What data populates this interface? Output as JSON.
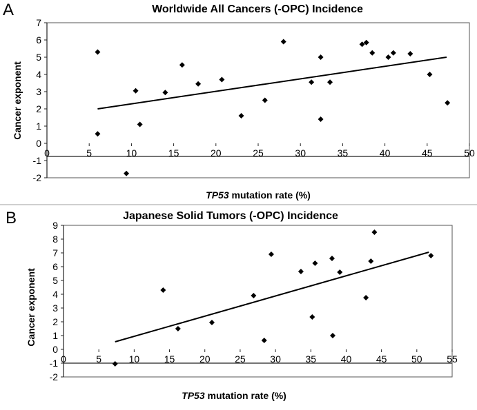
{
  "chart_data": [
    {
      "type": "scatter",
      "panel_label": "A",
      "title": "Worldwide All Cancers (-OPC) Incidence",
      "xlabel_italic": "TP53",
      "xlabel_rest": " mutation  rate (%)",
      "ylabel": "Cancer exponent",
      "xlim": [
        0,
        50
      ],
      "ylim": [
        -2,
        7
      ],
      "xticks": [
        0,
        5,
        10,
        15,
        20,
        25,
        30,
        35,
        40,
        45,
        50
      ],
      "yticks": [
        -2,
        -1,
        0,
        1,
        2,
        3,
        4,
        5,
        6,
        7
      ],
      "grid": false,
      "points": [
        {
          "x": 6.0,
          "y": 5.3
        },
        {
          "x": 6.0,
          "y": 0.55
        },
        {
          "x": 9.4,
          "y": -1.75
        },
        {
          "x": 10.5,
          "y": 3.05
        },
        {
          "x": 11.0,
          "y": 1.1
        },
        {
          "x": 14.0,
          "y": 2.95
        },
        {
          "x": 16.0,
          "y": 4.55
        },
        {
          "x": 17.9,
          "y": 3.45
        },
        {
          "x": 20.7,
          "y": 3.7
        },
        {
          "x": 23.0,
          "y": 1.6
        },
        {
          "x": 25.8,
          "y": 2.5
        },
        {
          "x": 28.0,
          "y": 5.9
        },
        {
          "x": 31.3,
          "y": 3.55
        },
        {
          "x": 32.4,
          "y": 5.0
        },
        {
          "x": 32.4,
          "y": 1.4
        },
        {
          "x": 33.5,
          "y": 3.55
        },
        {
          "x": 37.3,
          "y": 5.75
        },
        {
          "x": 37.8,
          "y": 5.85
        },
        {
          "x": 38.5,
          "y": 5.25
        },
        {
          "x": 40.4,
          "y": 5.0
        },
        {
          "x": 41.0,
          "y": 5.25
        },
        {
          "x": 43.0,
          "y": 5.2
        },
        {
          "x": 45.3,
          "y": 4.0
        },
        {
          "x": 47.4,
          "y": 2.35
        }
      ],
      "trendline": {
        "x": [
          6.0,
          47.3
        ],
        "y": [
          2.0,
          5.0
        ]
      }
    },
    {
      "type": "scatter",
      "panel_label": "B",
      "title": "Japanese Solid Tumors (-OPC) Incidence",
      "xlabel_italic": "TP53",
      "xlabel_rest": " mutation  rate (%)",
      "ylabel": "Cancer exponent",
      "xlim": [
        0,
        55
      ],
      "ylim": [
        -2,
        9
      ],
      "xticks": [
        0,
        5,
        10,
        15,
        20,
        25,
        30,
        35,
        40,
        45,
        50,
        55
      ],
      "yticks": [
        -2,
        -1,
        0,
        1,
        2,
        3,
        4,
        5,
        6,
        7,
        8,
        9
      ],
      "grid": false,
      "points": [
        {
          "x": 7.3,
          "y": -1.05
        },
        {
          "x": 14.1,
          "y": 4.3
        },
        {
          "x": 16.2,
          "y": 1.5
        },
        {
          "x": 21.0,
          "y": 1.95
        },
        {
          "x": 26.9,
          "y": 3.9
        },
        {
          "x": 28.4,
          "y": 0.65
        },
        {
          "x": 29.4,
          "y": 6.9
        },
        {
          "x": 33.6,
          "y": 5.65
        },
        {
          "x": 35.2,
          "y": 2.35
        },
        {
          "x": 35.6,
          "y": 6.25
        },
        {
          "x": 38.0,
          "y": 6.6
        },
        {
          "x": 38.1,
          "y": 1.0
        },
        {
          "x": 39.1,
          "y": 5.6
        },
        {
          "x": 42.8,
          "y": 3.75
        },
        {
          "x": 43.5,
          "y": 6.4
        },
        {
          "x": 44.0,
          "y": 8.5
        },
        {
          "x": 52.0,
          "y": 6.8
        }
      ],
      "trendline": {
        "x": [
          7.3,
          51.7
        ],
        "y": [
          0.55,
          7.05
        ]
      }
    }
  ]
}
